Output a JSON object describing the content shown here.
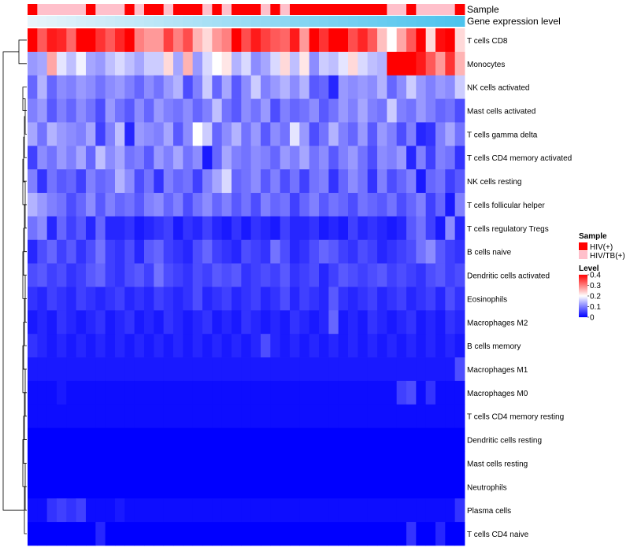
{
  "chart_data": {
    "type": "heatmap",
    "annotation_rows": [
      "Sample",
      "Gene expression level"
    ],
    "rows": [
      "T cells CD8",
      "Monocytes",
      "NK cells activated",
      "Mast cells activated",
      "T cells gamma delta",
      "T cells CD4 memory activated",
      "NK cells resting",
      "T cells follicular helper",
      "T cells regulatory  Tregs",
      "B cells naive",
      "Dendritic cells activated",
      "Eosinophils",
      "Macrophages M2",
      "B cells memory",
      "Macrophages M1",
      "Macrophages M0",
      "T cells CD4 memory resting",
      "Dendritic cells resting",
      "Mast cells resting",
      "Neutrophils",
      "Plasma cells",
      "T cells CD4 naive"
    ],
    "sample_groups": [
      "HIV(+)",
      "HIV/TB(+)",
      "HIV/TB(+)",
      "HIV/TB(+)",
      "HIV/TB(+)",
      "HIV/TB(+)",
      "HIV(+)",
      "HIV/TB(+)",
      "HIV/TB(+)",
      "HIV/TB(+)",
      "HIV(+)",
      "HIV/TB(+)",
      "HIV(+)",
      "HIV(+)",
      "HIV/TB(+)",
      "HIV(+)",
      "HIV(+)",
      "HIV(+)",
      "HIV/TB(+)",
      "HIV(+)",
      "HIV/TB(+)",
      "HIV(+)",
      "HIV(+)",
      "HIV(+)",
      "HIV/TB(+)",
      "HIV(+)",
      "HIV/TB(+)",
      "HIV(+)",
      "HIV(+)",
      "HIV(+)",
      "HIV(+)",
      "HIV(+)",
      "HIV(+)",
      "HIV(+)",
      "HIV(+)",
      "HIV(+)",
      "HIV(+)",
      "HIV/TB(+)",
      "HIV/TB(+)",
      "HIV(+)",
      "HIV/TB(+)",
      "HIV/TB(+)",
      "HIV/TB(+)",
      "HIV/TB(+)",
      "HIV(+)"
    ],
    "values": [
      [
        0.4,
        0.33,
        0.38,
        0.37,
        0.32,
        0.4,
        0.4,
        0.36,
        0.33,
        0.37,
        0.4,
        0.3,
        0.28,
        0.28,
        0.35,
        0.3,
        0.34,
        0.26,
        0.23,
        0.28,
        0.3,
        0.4,
        0.34,
        0.38,
        0.35,
        0.33,
        0.32,
        0.38,
        0.28,
        0.4,
        0.36,
        0.4,
        0.4,
        0.34,
        0.37,
        0.33,
        0.25,
        0.2,
        0.27,
        0.33,
        0.4,
        0.23,
        0.39,
        0.4,
        0.23
      ],
      [
        0.12,
        0.13,
        0.27,
        0.18,
        0.15,
        0.19,
        0.13,
        0.12,
        0.15,
        0.17,
        0.15,
        0.13,
        0.16,
        0.16,
        0.23,
        0.13,
        0.26,
        0.12,
        0.17,
        0.2,
        0.22,
        0.14,
        0.17,
        0.11,
        0.13,
        0.17,
        0.23,
        0.15,
        0.22,
        0.11,
        0.16,
        0.15,
        0.18,
        0.23,
        0.17,
        0.15,
        0.14,
        0.4,
        0.4,
        0.4,
        0.38,
        0.33,
        0.28,
        0.36,
        0.26
      ],
      [
        0.08,
        0.14,
        0.08,
        0.11,
        0.1,
        0.12,
        0.11,
        0.09,
        0.11,
        0.12,
        0.1,
        0.08,
        0.11,
        0.09,
        0.12,
        0.14,
        0.06,
        0.1,
        0.16,
        0.08,
        0.13,
        0.07,
        0.11,
        0.16,
        0.1,
        0.12,
        0.14,
        0.11,
        0.14,
        0.07,
        0.08,
        0.03,
        0.12,
        0.11,
        0.12,
        0.11,
        0.14,
        0.08,
        0.11,
        0.16,
        0.12,
        0.1,
        0.12,
        0.11,
        0.16
      ],
      [
        0.1,
        0.12,
        0.07,
        0.1,
        0.08,
        0.11,
        0.09,
        0.06,
        0.12,
        0.09,
        0.07,
        0.11,
        0.08,
        0.12,
        0.1,
        0.09,
        0.11,
        0.08,
        0.1,
        0.15,
        0.09,
        0.07,
        0.11,
        0.09,
        0.12,
        0.06,
        0.1,
        0.08,
        0.09,
        0.11,
        0.07,
        0.09,
        0.12,
        0.1,
        0.13,
        0.1,
        0.09,
        0.16,
        0.1,
        0.09,
        0.12,
        0.1,
        0.08,
        0.09,
        0.06
      ],
      [
        0.13,
        0.09,
        0.14,
        0.12,
        0.11,
        0.1,
        0.13,
        0.05,
        0.1,
        0.15,
        0.03,
        0.12,
        0.11,
        0.1,
        0.13,
        0.07,
        0.11,
        0.2,
        0.16,
        0.08,
        0.11,
        0.14,
        0.09,
        0.12,
        0.07,
        0.11,
        0.09,
        0.18,
        0.12,
        0.06,
        0.09,
        0.14,
        0.1,
        0.08,
        0.12,
        0.07,
        0.12,
        0.1,
        0.06,
        0.1,
        0.03,
        0.04,
        0.1,
        0.13,
        0.09
      ],
      [
        0.05,
        0.11,
        0.09,
        0.12,
        0.1,
        0.13,
        0.08,
        0.15,
        0.11,
        0.13,
        0.09,
        0.1,
        0.07,
        0.12,
        0.1,
        0.13,
        0.09,
        0.11,
        0.02,
        0.08,
        0.13,
        0.1,
        0.09,
        0.11,
        0.1,
        0.08,
        0.12,
        0.1,
        0.13,
        0.09,
        0.11,
        0.07,
        0.1,
        0.12,
        0.09,
        0.06,
        0.11,
        0.1,
        0.12,
        0.03,
        0.1,
        0.05,
        0.1,
        0.09,
        0.04
      ],
      [
        0.1,
        0.04,
        0.09,
        0.07,
        0.08,
        0.05,
        0.1,
        0.08,
        0.09,
        0.14,
        0.11,
        0.06,
        0.09,
        0.04,
        0.1,
        0.08,
        0.09,
        0.05,
        0.1,
        0.13,
        0.17,
        0.08,
        0.09,
        0.11,
        0.07,
        0.1,
        0.06,
        0.09,
        0.05,
        0.09,
        0.1,
        0.04,
        0.08,
        0.11,
        0.09,
        0.04,
        0.1,
        0.06,
        0.08,
        0.1,
        0.02,
        0.08,
        0.09,
        0.05,
        0.07
      ],
      [
        0.14,
        0.12,
        0.1,
        0.09,
        0.06,
        0.08,
        0.11,
        0.07,
        0.1,
        0.08,
        0.09,
        0.07,
        0.1,
        0.11,
        0.08,
        0.1,
        0.06,
        0.09,
        0.11,
        0.08,
        0.1,
        0.07,
        0.09,
        0.06,
        0.1,
        0.08,
        0.09,
        0.05,
        0.08,
        0.1,
        0.07,
        0.09,
        0.08,
        0.06,
        0.09,
        0.08,
        0.07,
        0.09,
        0.06,
        0.08,
        0.1,
        0.05,
        0.08,
        0.02,
        0.1
      ],
      [
        0.09,
        0.11,
        0.03,
        0.08,
        0.05,
        0.07,
        0.03,
        0.08,
        0.03,
        0.03,
        0.04,
        0.02,
        0.03,
        0.04,
        0.05,
        0.02,
        0.04,
        0.03,
        0.05,
        0.03,
        0.02,
        0.04,
        0.02,
        0.04,
        0.03,
        0.02,
        0.05,
        0.03,
        0.03,
        0.04,
        0.02,
        0.03,
        0.02,
        0.05,
        0.03,
        0.04,
        0.03,
        0.02,
        0.03,
        0.07,
        0.09,
        0.05,
        0.02,
        0.11,
        0.03
      ],
      [
        0.03,
        0.06,
        0.08,
        0.05,
        0.07,
        0.04,
        0.06,
        0.09,
        0.05,
        0.04,
        0.06,
        0.03,
        0.07,
        0.08,
        0.05,
        0.04,
        0.03,
        0.06,
        0.08,
        0.05,
        0.04,
        0.03,
        0.06,
        0.05,
        0.04,
        0.09,
        0.06,
        0.03,
        0.04,
        0.06,
        0.08,
        0.07,
        0.05,
        0.04,
        0.06,
        0.05,
        0.03,
        0.04,
        0.05,
        0.06,
        0.09,
        0.11,
        0.07,
        0.05,
        0.04
      ],
      [
        0.06,
        0.07,
        0.05,
        0.06,
        0.04,
        0.05,
        0.07,
        0.08,
        0.05,
        0.04,
        0.06,
        0.07,
        0.05,
        0.09,
        0.06,
        0.05,
        0.04,
        0.06,
        0.05,
        0.07,
        0.06,
        0.07,
        0.04,
        0.05,
        0.06,
        0.05,
        0.07,
        0.04,
        0.05,
        0.06,
        0.03,
        0.05,
        0.07,
        0.06,
        0.05,
        0.06,
        0.07,
        0.05,
        0.06,
        0.05,
        0.04,
        0.06,
        0.07,
        0.05,
        0.06
      ],
      [
        0.04,
        0.03,
        0.05,
        0.04,
        0.03,
        0.05,
        0.04,
        0.03,
        0.04,
        0.05,
        0.03,
        0.04,
        0.03,
        0.05,
        0.04,
        0.03,
        0.04,
        0.06,
        0.03,
        0.04,
        0.05,
        0.03,
        0.04,
        0.05,
        0.03,
        0.04,
        0.06,
        0.03,
        0.05,
        0.04,
        0.03,
        0.07,
        0.04,
        0.03,
        0.04,
        0.05,
        0.03,
        0.04,
        0.05,
        0.03,
        0.04,
        0.05,
        0.03,
        0.06,
        0.04
      ],
      [
        0.02,
        0.03,
        0.02,
        0.04,
        0.03,
        0.02,
        0.03,
        0.04,
        0.02,
        0.03,
        0.04,
        0.02,
        0.03,
        0.02,
        0.04,
        0.03,
        0.02,
        0.03,
        0.04,
        0.02,
        0.03,
        0.02,
        0.04,
        0.03,
        0.02,
        0.03,
        0.02,
        0.04,
        0.03,
        0.02,
        0.03,
        0.08,
        0.02,
        0.03,
        0.02,
        0.04,
        0.03,
        0.02,
        0.03,
        0.04,
        0.02,
        0.03,
        0.02,
        0.04,
        0.03
      ],
      [
        0.04,
        0.03,
        0.02,
        0.03,
        0.02,
        0.03,
        0.02,
        0.03,
        0.02,
        0.03,
        0.02,
        0.03,
        0.02,
        0.03,
        0.02,
        0.03,
        0.02,
        0.03,
        0.02,
        0.03,
        0.02,
        0.03,
        0.02,
        0.03,
        0.06,
        0.03,
        0.02,
        0.03,
        0.02,
        0.03,
        0.02,
        0.03,
        0.02,
        0.03,
        0.02,
        0.03,
        0.02,
        0.03,
        0.02,
        0.03,
        0.02,
        0.03,
        0.02,
        0.03,
        0.02
      ],
      [
        0.02,
        0.02,
        0.02,
        0.02,
        0.02,
        0.02,
        0.02,
        0.02,
        0.02,
        0.02,
        0.02,
        0.02,
        0.02,
        0.02,
        0.02,
        0.02,
        0.02,
        0.02,
        0.02,
        0.02,
        0.02,
        0.02,
        0.02,
        0.02,
        0.02,
        0.02,
        0.02,
        0.02,
        0.02,
        0.02,
        0.02,
        0.02,
        0.02,
        0.02,
        0.02,
        0.02,
        0.02,
        0.02,
        0.02,
        0.02,
        0.02,
        0.02,
        0.02,
        0.02,
        0.06
      ],
      [
        0.01,
        0.01,
        0.01,
        0.02,
        0.01,
        0.01,
        0.01,
        0.01,
        0.01,
        0.01,
        0.01,
        0.01,
        0.01,
        0.01,
        0.01,
        0.01,
        0.01,
        0.01,
        0.01,
        0.01,
        0.01,
        0.01,
        0.01,
        0.01,
        0.01,
        0.01,
        0.01,
        0.01,
        0.01,
        0.01,
        0.01,
        0.01,
        0.01,
        0.01,
        0.01,
        0.01,
        0.01,
        0.01,
        0.05,
        0.06,
        0.01,
        0.04,
        0.01,
        0.01,
        0.01
      ],
      [
        0.01,
        0.01,
        0.01,
        0.01,
        0.01,
        0.01,
        0.01,
        0.01,
        0.01,
        0.01,
        0.01,
        0.01,
        0.01,
        0.01,
        0.01,
        0.01,
        0.01,
        0.01,
        0.01,
        0.01,
        0.01,
        0.01,
        0.01,
        0.01,
        0.01,
        0.01,
        0.01,
        0.01,
        0.01,
        0.01,
        0.01,
        0.01,
        0.01,
        0.01,
        0.01,
        0.01,
        0.01,
        0.01,
        0.01,
        0.01,
        0.01,
        0.01,
        0.01,
        0.01,
        0.01
      ],
      [
        0.0,
        0.0,
        0.0,
        0.0,
        0.0,
        0.0,
        0.0,
        0.0,
        0.0,
        0.0,
        0.0,
        0.0,
        0.0,
        0.0,
        0.0,
        0.0,
        0.0,
        0.0,
        0.0,
        0.0,
        0.0,
        0.0,
        0.0,
        0.0,
        0.0,
        0.0,
        0.0,
        0.0,
        0.0,
        0.0,
        0.0,
        0.0,
        0.0,
        0.0,
        0.0,
        0.0,
        0.0,
        0.0,
        0.0,
        0.0,
        0.0,
        0.0,
        0.0,
        0.0,
        0.0
      ],
      [
        0.0,
        0.0,
        0.0,
        0.0,
        0.0,
        0.0,
        0.0,
        0.0,
        0.0,
        0.0,
        0.0,
        0.0,
        0.0,
        0.0,
        0.0,
        0.0,
        0.0,
        0.0,
        0.0,
        0.0,
        0.0,
        0.0,
        0.0,
        0.0,
        0.0,
        0.0,
        0.0,
        0.0,
        0.0,
        0.0,
        0.0,
        0.0,
        0.0,
        0.0,
        0.0,
        0.0,
        0.0,
        0.0,
        0.0,
        0.0,
        0.0,
        0.0,
        0.0,
        0.0,
        0.0
      ],
      [
        0.0,
        0.0,
        0.0,
        0.0,
        0.0,
        0.0,
        0.0,
        0.0,
        0.0,
        0.0,
        0.0,
        0.0,
        0.0,
        0.0,
        0.0,
        0.0,
        0.0,
        0.0,
        0.0,
        0.0,
        0.0,
        0.0,
        0.0,
        0.0,
        0.0,
        0.0,
        0.0,
        0.0,
        0.0,
        0.0,
        0.0,
        0.0,
        0.0,
        0.0,
        0.0,
        0.0,
        0.0,
        0.0,
        0.0,
        0.0,
        0.0,
        0.0,
        0.0,
        0.0,
        0.0
      ],
      [
        0.01,
        0.01,
        0.04,
        0.05,
        0.04,
        0.05,
        0.01,
        0.01,
        0.01,
        0.02,
        0.01,
        0.01,
        0.01,
        0.01,
        0.01,
        0.01,
        0.01,
        0.01,
        0.01,
        0.01,
        0.01,
        0.01,
        0.01,
        0.01,
        0.01,
        0.01,
        0.01,
        0.01,
        0.01,
        0.01,
        0.01,
        0.01,
        0.01,
        0.01,
        0.01,
        0.01,
        0.01,
        0.01,
        0.01,
        0.01,
        0.01,
        0.01,
        0.01,
        0.01,
        0.04
      ],
      [
        0.0,
        0.0,
        0.0,
        0.0,
        0.0,
        0.0,
        0.0,
        0.03,
        0.0,
        0.0,
        0.0,
        0.0,
        0.0,
        0.0,
        0.0,
        0.0,
        0.0,
        0.0,
        0.0,
        0.0,
        0.0,
        0.0,
        0.0,
        0.0,
        0.0,
        0.0,
        0.0,
        0.0,
        0.0,
        0.0,
        0.0,
        0.0,
        0.0,
        0.0,
        0.0,
        0.0,
        0.0,
        0.0,
        0.0,
        0.04,
        0.0,
        0.0,
        0.03,
        0.0,
        0.0
      ]
    ],
    "legend": {
      "sample_title": "Sample",
      "sample_entries": [
        "HIV(+)",
        "HIV/TB(+)"
      ],
      "level_title": "Level",
      "level_ticks": [
        "0.4",
        "0.3",
        "0.2",
        "0.1",
        "0"
      ],
      "level_range": [
        0,
        0.4
      ]
    },
    "colors": {
      "hiv": "#ff0000",
      "hiv_tb": "#ffc0cb",
      "low": "#0000ff",
      "mid": "#ffffff",
      "high": "#ff0000",
      "expr_light": "#e8f4fb",
      "expr_dark": "#4cc3ed"
    }
  }
}
